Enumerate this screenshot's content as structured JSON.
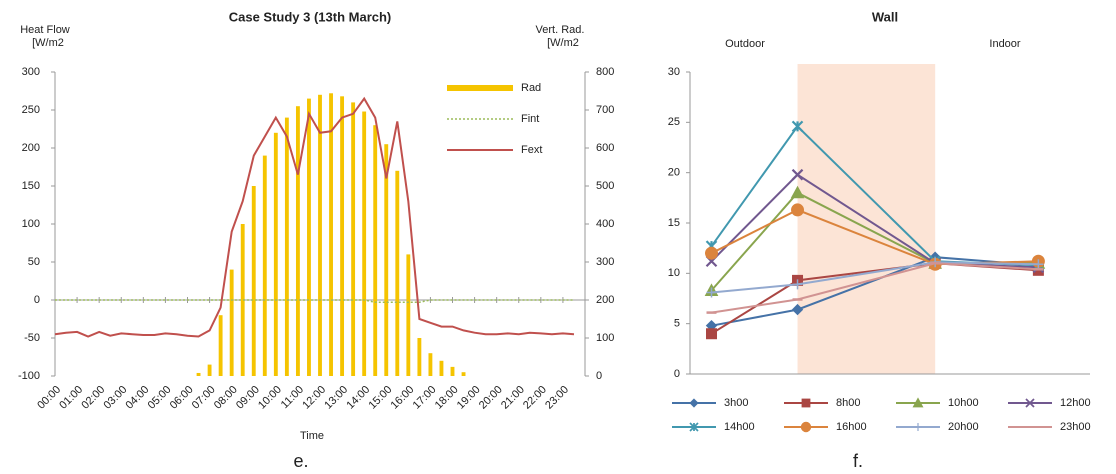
{
  "chart_data": [
    {
      "type": "combo",
      "title": "Case Study 3 (13th March)",
      "caption": "e.",
      "y_label": [
        "Heat Flow",
        "[W/m2"
      ],
      "y2_label": [
        "Vert. Rad.",
        "[W/m2"
      ],
      "x_label": "Time",
      "x": [
        0,
        0.5,
        1,
        1.5,
        2,
        2.5,
        3,
        3.5,
        4,
        4.5,
        5,
        5.5,
        6,
        6.5,
        7,
        7.5,
        8,
        8.5,
        9,
        9.5,
        10,
        10.5,
        11,
        11.5,
        12,
        12.5,
        13,
        13.5,
        14,
        14.5,
        15,
        15.5,
        16,
        16.5,
        17,
        17.5,
        18,
        18.5,
        19,
        19.5,
        20,
        20.5,
        21,
        21.5,
        22,
        22.5,
        23,
        23.5
      ],
      "xlim": [
        0,
        24
      ],
      "xticks": [
        {
          "value": 0,
          "label": "00:00"
        },
        {
          "value": 1,
          "label": "01:00"
        },
        {
          "value": 2,
          "label": "02:00"
        },
        {
          "value": 3,
          "label": "03:00"
        },
        {
          "value": 4,
          "label": "04:00"
        },
        {
          "value": 5,
          "label": "05:00"
        },
        {
          "value": 6,
          "label": "06:00"
        },
        {
          "value": 7,
          "label": "07:00"
        },
        {
          "value": 8,
          "label": "08:00"
        },
        {
          "value": 9,
          "label": "09:00"
        },
        {
          "value": 10,
          "label": "10:00"
        },
        {
          "value": 11,
          "label": "11:00"
        },
        {
          "value": 12,
          "label": "12:00"
        },
        {
          "value": 13,
          "label": "13:00"
        },
        {
          "value": 14,
          "label": "14:00"
        },
        {
          "value": 15,
          "label": "15:00"
        },
        {
          "value": 16,
          "label": "16:00"
        },
        {
          "value": 17,
          "label": "17:00"
        },
        {
          "value": 18,
          "label": "18:00"
        },
        {
          "value": 19,
          "label": "19:00"
        },
        {
          "value": 20,
          "label": "20:00"
        },
        {
          "value": 21,
          "label": "21:00"
        },
        {
          "value": 22,
          "label": "22:00"
        },
        {
          "value": 23,
          "label": "23:00"
        }
      ],
      "ylim": [
        -100,
        300
      ],
      "yticks": [
        -100,
        -50,
        0,
        50,
        100,
        150,
        200,
        250,
        300
      ],
      "y2lim": [
        0,
        800
      ],
      "y2ticks": [
        0,
        100,
        200,
        300,
        400,
        500,
        600,
        700,
        800
      ],
      "legend": "upper right",
      "series": [
        {
          "name": "Rad",
          "kind": "bar",
          "axis": "y2",
          "color": "#f5c400",
          "values": [
            0,
            0,
            0,
            0,
            0,
            0,
            0,
            0,
            0,
            0,
            0,
            0,
            0,
            8,
            30,
            160,
            280,
            400,
            500,
            580,
            640,
            680,
            710,
            730,
            740,
            744,
            736,
            720,
            696,
            660,
            610,
            540,
            320,
            100,
            60,
            40,
            24,
            10,
            0,
            0,
            0,
            0,
            0,
            0,
            0,
            0,
            0,
            0
          ]
        },
        {
          "name": "Fint",
          "kind": "line",
          "style": "dotted",
          "color": "#9bbb59",
          "values": [
            0,
            0,
            0,
            0,
            0,
            0,
            0,
            0,
            0,
            0,
            0,
            0,
            0,
            0,
            0,
            0,
            0,
            0,
            0,
            0,
            0,
            0,
            0,
            0,
            0,
            0,
            0,
            0,
            0,
            -3,
            -3,
            -3,
            -3,
            -3,
            0,
            0,
            0,
            0,
            0,
            0,
            0,
            0,
            0,
            0,
            0,
            0,
            0,
            0
          ]
        },
        {
          "name": "Fext",
          "kind": "line",
          "style": "solid",
          "color": "#c0504d",
          "values": [
            -45,
            -43,
            -42,
            -48,
            -42,
            -47,
            -44,
            -45,
            -46,
            -46,
            -44,
            -45,
            -47,
            -48,
            -40,
            -10,
            90,
            130,
            190,
            215,
            240,
            215,
            165,
            245,
            220,
            222,
            240,
            245,
            265,
            240,
            160,
            235,
            130,
            -25,
            -30,
            -35,
            -35,
            -40,
            -43,
            -45,
            -45,
            -44,
            -45,
            -43,
            -44,
            -45,
            -44,
            -45
          ]
        }
      ]
    },
    {
      "type": "line",
      "title": "Wall",
      "caption": "f.",
      "annotations": [
        "Outdoor",
        "Indoor"
      ],
      "x": [
        0,
        1,
        2.6,
        3.8
      ],
      "xlim": [
        -0.25,
        4.4
      ],
      "ylim": [
        0,
        30
      ],
      "yticks": [
        0,
        5,
        10,
        15,
        20,
        25,
        30
      ],
      "legend": "bottom",
      "series": [
        {
          "name": "3h00",
          "color": "#4572a7",
          "marker": "diamond",
          "values": [
            4.8,
            6.4,
            11.6,
            10.8
          ]
        },
        {
          "name": "8h00",
          "color": "#aa4643",
          "marker": "square",
          "values": [
            4.0,
            9.3,
            11.0,
            10.3
          ]
        },
        {
          "name": "10h00",
          "color": "#89a54e",
          "marker": "triangle",
          "values": [
            8.3,
            18.0,
            11.0,
            11.0
          ]
        },
        {
          "name": "12h00",
          "color": "#71588f",
          "marker": "x",
          "values": [
            11.2,
            19.8,
            11.0,
            10.6
          ]
        },
        {
          "name": "14h00",
          "color": "#4198af",
          "marker": "star",
          "values": [
            12.7,
            24.6,
            11.2,
            10.8
          ]
        },
        {
          "name": "16h00",
          "color": "#db843d",
          "marker": "circle",
          "values": [
            12.0,
            16.3,
            10.9,
            11.2
          ]
        },
        {
          "name": "20h00",
          "color": "#93a9cf",
          "marker": "plus",
          "values": [
            8.1,
            8.9,
            11.1,
            10.9
          ]
        },
        {
          "name": "23h00",
          "color": "#d19392",
          "marker": "dash",
          "values": [
            6.1,
            7.4,
            11.0,
            10.4
          ]
        }
      ]
    }
  ]
}
